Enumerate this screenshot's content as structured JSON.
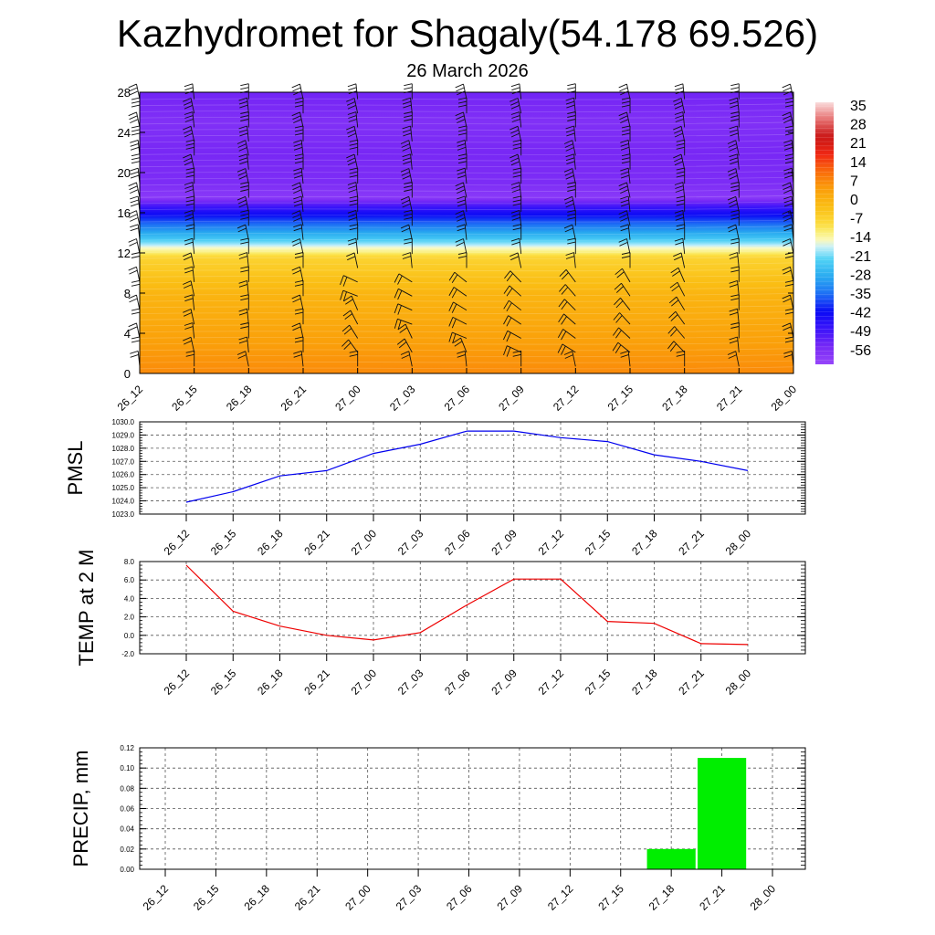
{
  "title": "Kazhydromet for Shagaly(54.178 69.526)",
  "subtitle": "26 March 2026",
  "chart_data": [
    {
      "id": "cross-section",
      "type": "heatmap",
      "description_of_fields": "temperature shading by height with wind barbs",
      "x_tick_labels": [
        "26_12",
        "26_15",
        "26_18",
        "26_21",
        "27_00",
        "27_03",
        "27_06",
        "27_09",
        "27_12",
        "27_15",
        "27_18",
        "27_21",
        "28_00"
      ],
      "y_tick_labels": [
        "0",
        "4",
        "8",
        "12",
        "16",
        "20",
        "24",
        "28"
      ],
      "ylim": [
        0,
        28
      ],
      "colorbar_labels": [
        "35",
        "28",
        "21",
        "14",
        "7",
        "0",
        "-7",
        "-14",
        "-21",
        "-28",
        "-35",
        "-42",
        "-49",
        "-56"
      ],
      "colorbar_range": [
        -63,
        42
      ],
      "temperature_profile": [
        {
          "h": 0,
          "t": 10
        },
        {
          "h": 4,
          "t": 6
        },
        {
          "h": 8,
          "t": 2
        },
        {
          "h": 10,
          "t": -2
        },
        {
          "h": 11.5,
          "t": -5
        },
        {
          "h": 12.5,
          "t": -14
        },
        {
          "h": 13.5,
          "t": -24
        },
        {
          "h": 15,
          "t": -36
        },
        {
          "h": 16.5,
          "t": -48
        },
        {
          "h": 17.5,
          "t": -60
        },
        {
          "h": 19,
          "t": -57
        },
        {
          "h": 22,
          "t": -56
        },
        {
          "h": 25,
          "t": -58
        },
        {
          "h": 28,
          "t": -55
        }
      ]
    },
    {
      "id": "pmsl",
      "type": "line",
      "ylabel": "PMSL",
      "categories": [
        "26_12",
        "26_15",
        "26_18",
        "26_21",
        "27_00",
        "27_03",
        "27_06",
        "27_09",
        "27_12",
        "27_15",
        "27_18",
        "27_21",
        "28_00"
      ],
      "values": [
        1023.9,
        1024.7,
        1025.9,
        1026.3,
        1027.6,
        1028.3,
        1029.3,
        1029.3,
        1028.8,
        1028.5,
        1027.5,
        1027.0,
        1026.3
      ],
      "ylim": [
        1023.0,
        1030.0
      ],
      "y_tick_labels": [
        "1023.0",
        "1024.0",
        "1025.0",
        "1026.0",
        "1027.0",
        "1028.0",
        "1029.0",
        "1030.0"
      ],
      "color": "#0000ee"
    },
    {
      "id": "temp",
      "type": "line",
      "ylabel": "TEMP at 2 M",
      "categories": [
        "26_12",
        "26_15",
        "26_18",
        "26_21",
        "27_00",
        "27_03",
        "27_06",
        "27_09",
        "27_12",
        "27_15",
        "27_18",
        "27_21",
        "28_00"
      ],
      "values": [
        7.6,
        2.6,
        1.0,
        0.0,
        -0.5,
        0.3,
        3.3,
        6.1,
        6.1,
        1.5,
        1.3,
        -0.9,
        -1.0
      ],
      "ylim": [
        -2.0,
        8.0
      ],
      "y_tick_labels": [
        "-2.0",
        "0.0",
        "2.0",
        "4.0",
        "6.0",
        "8.0"
      ],
      "color": "#ee0000"
    },
    {
      "id": "precip",
      "type": "bar",
      "ylabel": "PRECIP, mm",
      "categories": [
        "26_12",
        "26_15",
        "26_18",
        "26_21",
        "27_00",
        "27_03",
        "27_06",
        "27_09",
        "27_12",
        "27_15",
        "27_18",
        "27_21",
        "28_00"
      ],
      "values": [
        0,
        0,
        0,
        0,
        0,
        0,
        0,
        0,
        0,
        0,
        0.02,
        0.11,
        0
      ],
      "ylim": [
        0,
        0.12
      ],
      "y_tick_labels": [
        "0.00",
        "0.02",
        "0.04",
        "0.06",
        "0.08",
        "0.10",
        "0.12"
      ],
      "color": "#00ee00"
    }
  ]
}
